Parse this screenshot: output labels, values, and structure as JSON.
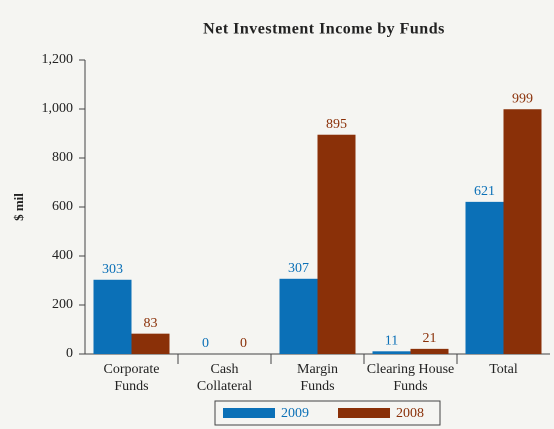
{
  "chart_data": {
    "type": "bar",
    "title": "Net Investment Income by Funds",
    "y_label": "$ mil",
    "categories": [
      "Corporate Funds",
      "Cash Collateral",
      "Margin Funds",
      "Clearing House Funds",
      "Total"
    ],
    "series": [
      {
        "name": "2009",
        "color": "#0b70b7",
        "values": [
          303,
          0,
          307,
          11,
          621
        ]
      },
      {
        "name": "2008",
        "color": "#8a3008",
        "values": [
          83,
          0,
          895,
          21,
          999
        ]
      }
    ],
    "ylim": [
      0,
      1200
    ],
    "yticks": [
      0,
      200,
      400,
      600,
      800,
      {
        "value": 1000,
        "label": "1,000"
      },
      {
        "value": 1200,
        "label": "1,200"
      }
    ],
    "legend": "bottom"
  }
}
